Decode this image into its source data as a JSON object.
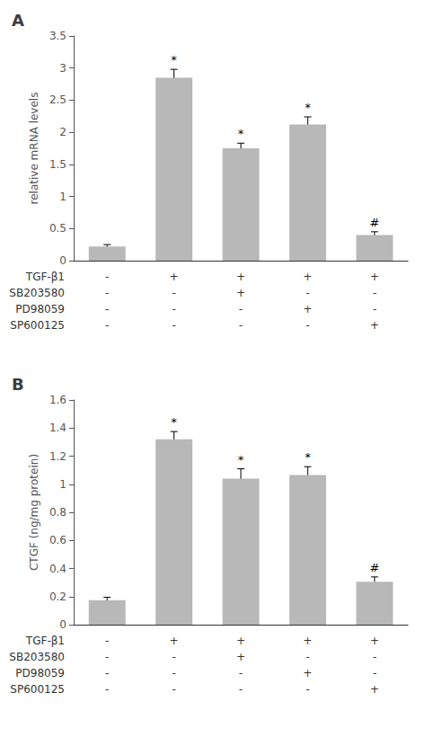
{
  "chart_data": [
    {
      "type": "bar",
      "title": "A",
      "categories": [
        null,
        null,
        null,
        null,
        null
      ],
      "values": [
        0.22,
        2.85,
        1.75,
        2.12,
        0.4
      ],
      "errors": [
        0.03,
        0.13,
        0.08,
        0.12,
        0.05
      ],
      "annotations": [
        null,
        "*",
        "*",
        "*",
        "#"
      ],
      "color": "#b8b8b8",
      "ylabel": "relative mRNA levels",
      "ylim": [
        0,
        3.5
      ],
      "yticks": [
        0,
        0.5,
        1,
        1.5,
        2,
        2.5,
        3,
        3.5
      ],
      "grid": false,
      "table": [
        {
          "label": "TGF-β1",
          "values": [
            "-",
            "+",
            "+",
            "+",
            "+"
          ]
        },
        {
          "label": "SB203580",
          "values": [
            "-",
            "-",
            "+",
            "-",
            "-"
          ]
        },
        {
          "label": "PD98059",
          "values": [
            "-",
            "-",
            "-",
            "+",
            "-"
          ]
        },
        {
          "label": "SP600125",
          "values": [
            "-",
            "-",
            "-",
            "-",
            "+"
          ]
        }
      ]
    },
    {
      "type": "bar",
      "title": "B",
      "categories": [
        null,
        null,
        null,
        null,
        null
      ],
      "values": [
        0.175,
        1.32,
        1.04,
        1.065,
        0.305
      ],
      "errors": [
        0.02,
        0.055,
        0.07,
        0.06,
        0.035
      ],
      "annotations": [
        null,
        "*",
        "*",
        "*",
        "#"
      ],
      "color": "#b8b8b8",
      "ylabel": "CTGF (ng/mg protein)",
      "ylim": [
        0,
        1.6
      ],
      "yticks": [
        0,
        0.2,
        0.4,
        0.6,
        0.8,
        1,
        1.2,
        1.4,
        1.6
      ],
      "grid": false,
      "table": [
        {
          "label": "TGF-β1",
          "values": [
            "-",
            "+",
            "+",
            "+",
            "+"
          ]
        },
        {
          "label": "SB203580",
          "values": [
            "-",
            "-",
            "+",
            "-",
            "-"
          ]
        },
        {
          "label": "PD98059",
          "values": [
            "-",
            "-",
            "-",
            "+",
            "-"
          ]
        },
        {
          "label": "SP600125",
          "values": [
            "-",
            "-",
            "-",
            "-",
            "+"
          ]
        }
      ]
    }
  ]
}
